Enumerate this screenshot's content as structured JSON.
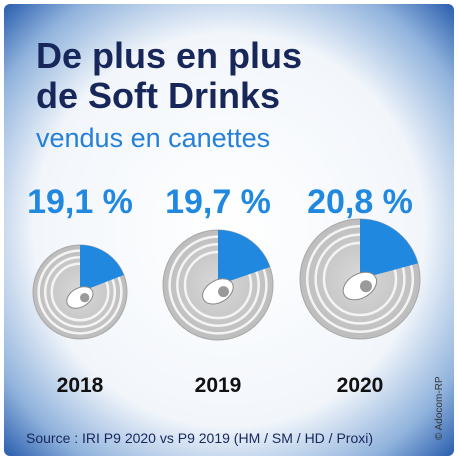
{
  "chart_data": {
    "type": "pie",
    "title": [
      "De plus en plus",
      "de Soft Drinks"
    ],
    "subtitle": "vendus en canettes",
    "categories": [
      "2018",
      "2019",
      "2020"
    ],
    "values": [
      19.1,
      19.7,
      20.8
    ],
    "value_labels": [
      "19,1 %",
      "19,7 %",
      "20,8 %"
    ],
    "color": "#2188e0",
    "source": "Source : IRI P9 2020 vs P9 2019 (HM / SM / HD / Proxi)",
    "credit": "© Adocom-RP"
  }
}
